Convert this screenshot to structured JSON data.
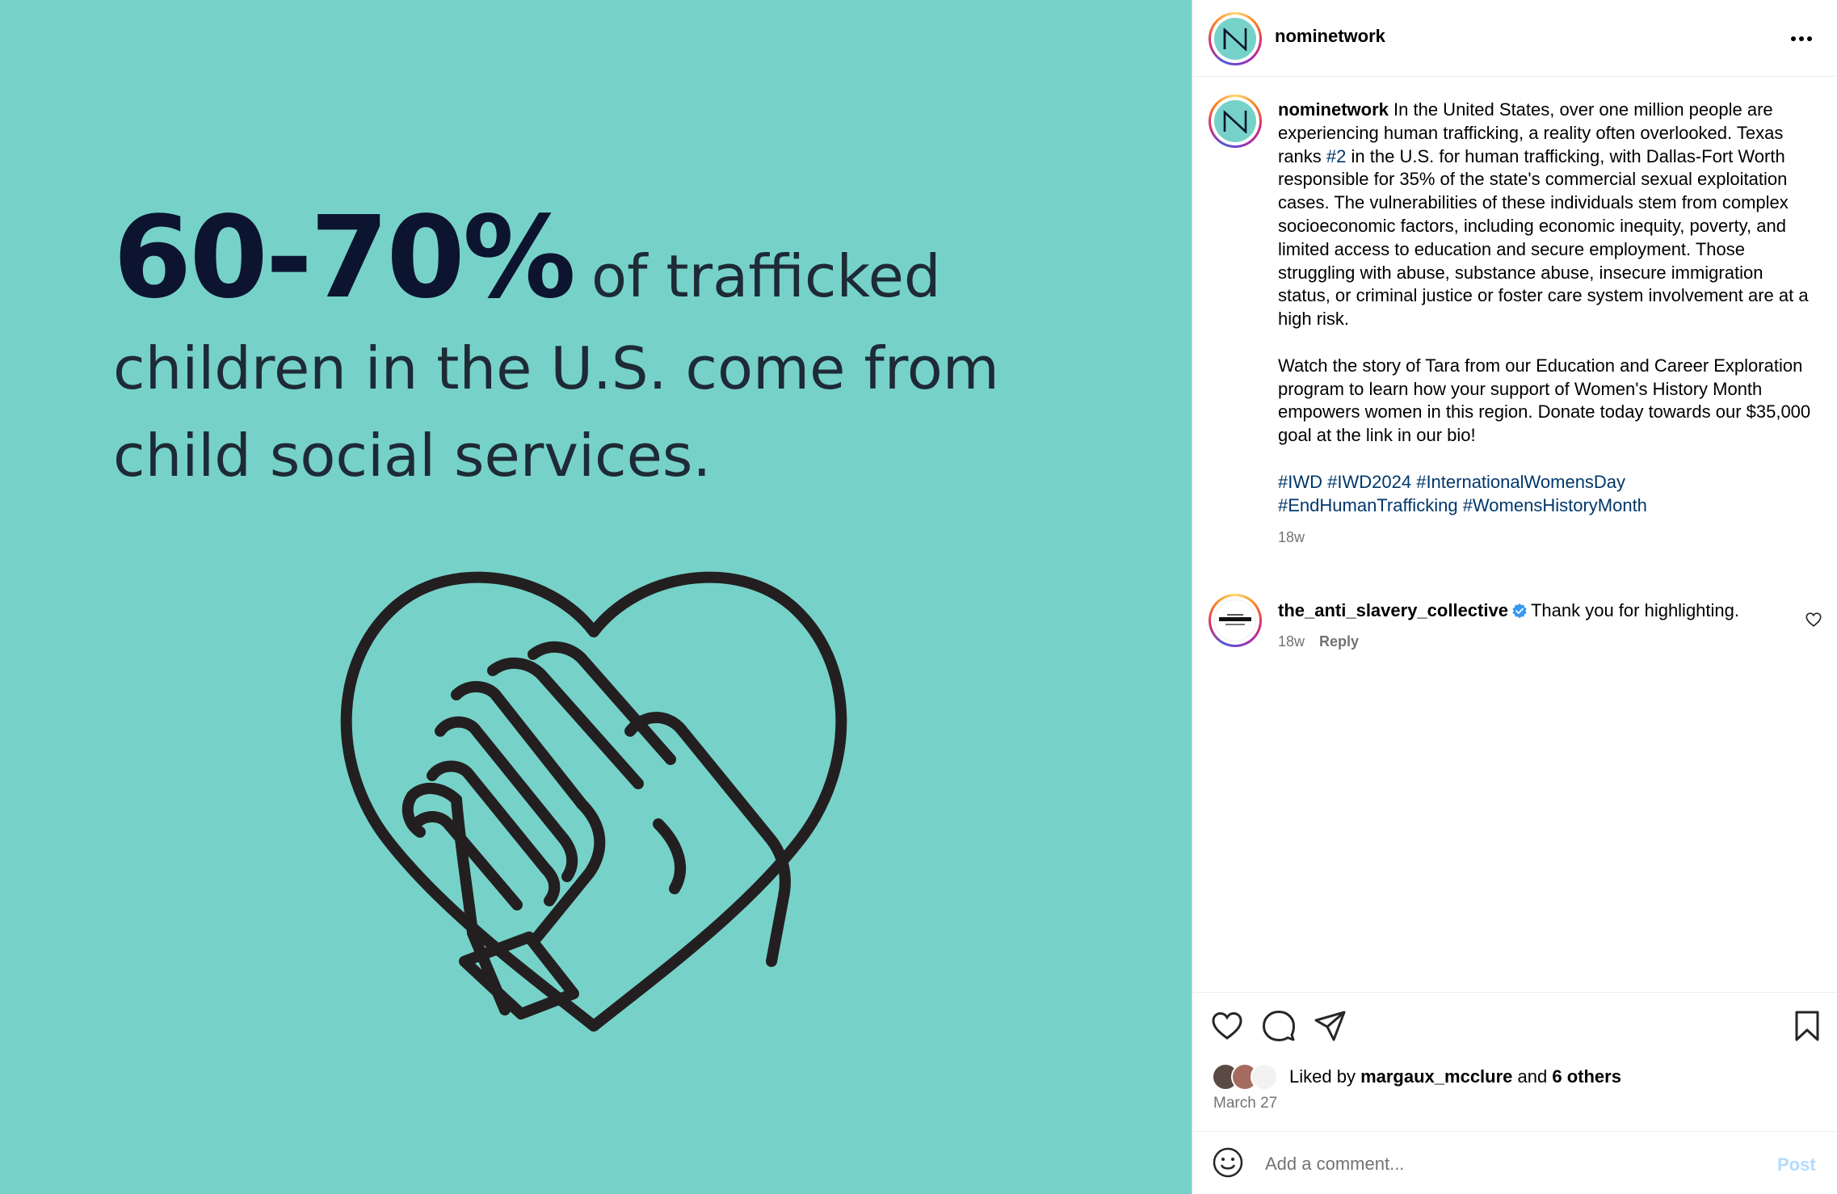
{
  "media": {
    "stat": "60-70%",
    "line1_rest": "of trafficked",
    "line2": "children in the U.S. come from",
    "line3": "child social services.",
    "colors": {
      "background": "#76d2c8",
      "stat": "#0c1430",
      "text": "#1e2a36",
      "graphic": "#231f20"
    },
    "graphic_icon": "heart-with-hands-icon"
  },
  "header": {
    "username": "nominetwork",
    "avatar_letter": "N",
    "more_icon": "more-horizontal-icon"
  },
  "caption": {
    "username": "nominetwork",
    "text_before_link": "In the United States, over one million people are experiencing human trafficking, a reality often overlooked. Texas ranks ",
    "rank_link": "#2",
    "text_after_link": " in the U.S. for human trafficking, with Dallas-Fort Worth responsible for 35% of the state's commercial sexual exploitation cases. The vulnerabilities of these individuals stem from complex socioeconomic factors, including economic inequity, poverty, and limited access to education and secure employment. Those struggling with abuse, substance abuse, insecure immigration status, or criminal justice or foster care system involvement are at a high risk.",
    "paragraph2": "Watch the story of Tara from our Education and Career Exploration program to learn how your support of Women's History Month empowers women in this region. Donate today towards our $35,000 goal at the link in our bio!",
    "hashtags": [
      "#IWD",
      "#IWD2024",
      "#InternationalWomensDay",
      "#EndHumanTrafficking",
      "#WomensHistoryMonth"
    ],
    "time": "18w"
  },
  "comment": {
    "username": "the_anti_slavery_collective",
    "verified_icon": "verified-badge-icon",
    "text": "Thank you for highlighting.",
    "time": "18w",
    "reply_label": "Reply",
    "like_icon": "heart-outline-icon"
  },
  "actions": {
    "like_icon": "heart-outline-icon",
    "comment_icon": "comment-bubble-icon",
    "share_icon": "paper-plane-icon",
    "save_icon": "bookmark-icon"
  },
  "likes": {
    "prefix": "Liked by",
    "user": "margaux_mcclure",
    "conjunction": "and",
    "others": "6 others"
  },
  "date": "March 27",
  "comment_box": {
    "emoji_icon": "emoji-smiley-icon",
    "placeholder": "Add a comment...",
    "post_label": "Post"
  }
}
